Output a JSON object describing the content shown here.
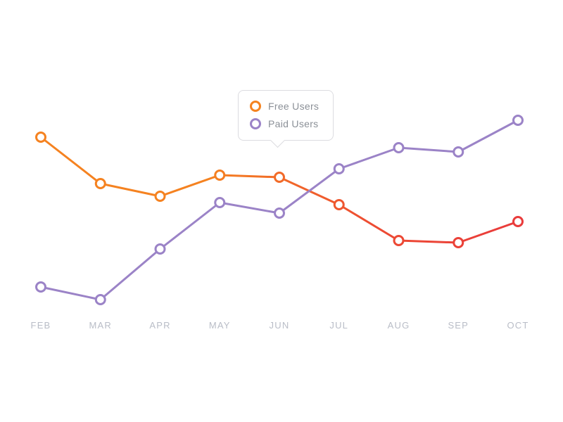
{
  "chart_data": {
    "type": "line",
    "categories": [
      "FEB",
      "MAR",
      "APR",
      "MAY",
      "JUN",
      "JUL",
      "AUG",
      "SEP",
      "OCT"
    ],
    "series": [
      {
        "name": "Free Users",
        "values": [
          85,
          63,
          57,
          67,
          66,
          53,
          36,
          35,
          45
        ],
        "color_start": "#f58220",
        "color_end": "#e93b3b",
        "gradient": true
      },
      {
        "name": "Paid Users",
        "values": [
          14,
          8,
          32,
          54,
          49,
          70,
          80,
          78,
          93
        ],
        "color": "#9b83c7",
        "gradient": false
      }
    ],
    "title": "",
    "xlabel": "",
    "ylabel": "",
    "ylim": [
      0,
      100
    ],
    "grid": false,
    "y_axis_visible": false,
    "legend_position": "tooltip-above-jun",
    "axis_label_color": "#b9bdc7",
    "marker_style": "open-circle-white-fill"
  },
  "legend": {
    "items": [
      {
        "label": "Free Users",
        "color": "#f5831f"
      },
      {
        "label": "Paid Users",
        "color": "#9b83c7"
      }
    ]
  }
}
